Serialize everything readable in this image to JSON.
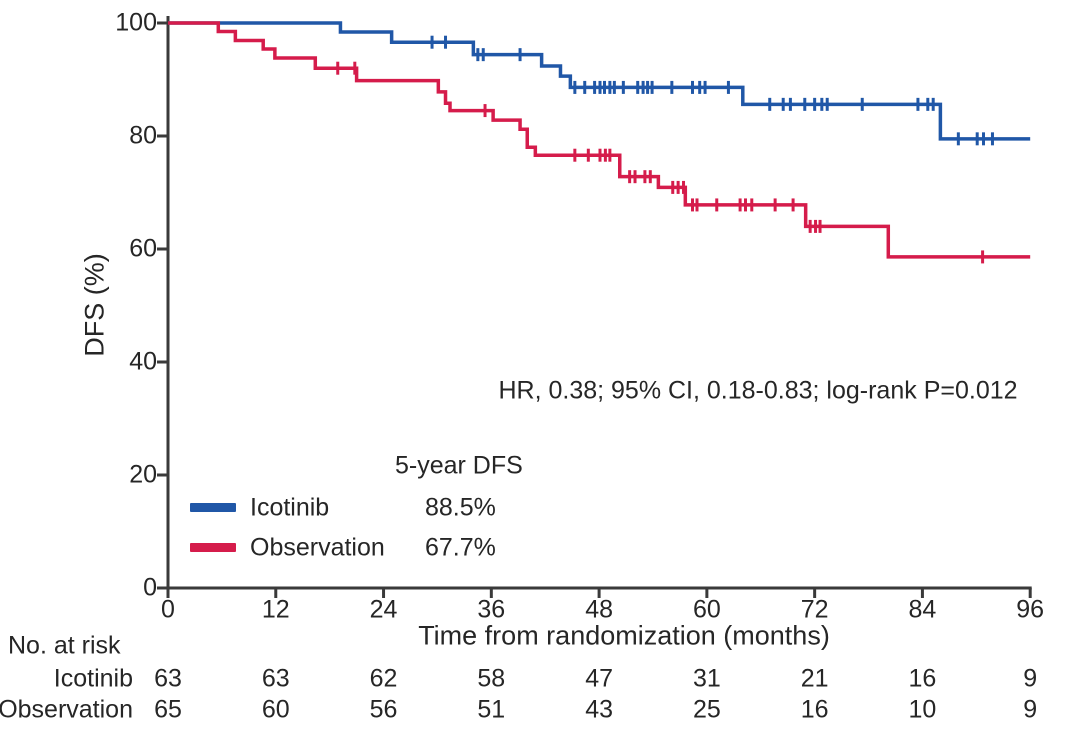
{
  "chart_data": {
    "type": "line",
    "subtype": "kaplan-meier-step-curves",
    "title": "",
    "xlabel": "Time from randomization (months)",
    "ylabel": "DFS (%)",
    "xlim": [
      0,
      96
    ],
    "ylim": [
      0,
      100
    ],
    "xticks": [
      0,
      12,
      24,
      36,
      48,
      60,
      72,
      84,
      96
    ],
    "yticks": [
      0,
      20,
      40,
      60,
      80,
      100
    ],
    "grid": false,
    "legend_position": "lower-left-inside",
    "annotation": "HR, 0.38; 95% CI, 0.18-0.83; log-rank P=0.012",
    "legend": {
      "header": "5-year DFS",
      "entries": [
        {
          "name": "Icotinib",
          "color": "#2057a7",
          "five_year_dfs": "88.5%"
        },
        {
          "name": "Observation",
          "color": "#d51c4b",
          "five_year_dfs": "67.7%"
        }
      ]
    },
    "series": [
      {
        "name": "Icotinib",
        "color": "#2057a7",
        "steps": [
          [
            0,
            100
          ],
          [
            19.2,
            98.4
          ],
          [
            24.9,
            96.6
          ],
          [
            34.0,
            94.4
          ],
          [
            41.6,
            92.4
          ],
          [
            43.7,
            90.6
          ],
          [
            44.8,
            88.6
          ],
          [
            64.0,
            85.6
          ],
          [
            86.0,
            79.5
          ]
        ],
        "end_month": 96,
        "censors": [
          [
            29.4,
            96.6
          ],
          [
            30.9,
            96.6
          ],
          [
            34.5,
            94.4
          ],
          [
            35.1,
            94.4
          ],
          [
            39.2,
            94.4
          ],
          [
            45.3,
            88.6
          ],
          [
            46.4,
            88.6
          ],
          [
            47.5,
            88.6
          ],
          [
            48.1,
            88.6
          ],
          [
            48.6,
            88.6
          ],
          [
            49.2,
            88.6
          ],
          [
            49.7,
            88.6
          ],
          [
            50.7,
            88.6
          ],
          [
            52.3,
            88.6
          ],
          [
            52.9,
            88.6
          ],
          [
            53.4,
            88.6
          ],
          [
            53.9,
            88.6
          ],
          [
            56.1,
            88.6
          ],
          [
            58.4,
            88.6
          ],
          [
            59.2,
            88.6
          ],
          [
            59.8,
            88.6
          ],
          [
            62.4,
            88.6
          ],
          [
            67.0,
            85.6
          ],
          [
            68.5,
            85.6
          ],
          [
            69.3,
            85.6
          ],
          [
            70.9,
            85.6
          ],
          [
            72.0,
            85.6
          ],
          [
            72.8,
            85.6
          ],
          [
            73.4,
            85.6
          ],
          [
            77.3,
            85.6
          ],
          [
            83.5,
            85.6
          ],
          [
            84.6,
            85.6
          ],
          [
            85.2,
            85.6
          ],
          [
            88.0,
            79.5
          ],
          [
            90.1,
            79.5
          ],
          [
            90.8,
            79.5
          ],
          [
            91.8,
            79.5
          ]
        ]
      },
      {
        "name": "Observation",
        "color": "#d51c4b",
        "steps": [
          [
            0,
            100
          ],
          [
            5.6,
            98.5
          ],
          [
            7.5,
            96.9
          ],
          [
            10.6,
            95.4
          ],
          [
            11.9,
            93.8
          ],
          [
            16.4,
            92.0
          ],
          [
            21.0,
            89.8
          ],
          [
            30.1,
            87.8
          ],
          [
            30.9,
            85.8
          ],
          [
            31.4,
            84.5
          ],
          [
            36.2,
            82.8
          ],
          [
            39.2,
            81.2
          ],
          [
            40.0,
            78.0
          ],
          [
            40.9,
            76.6
          ],
          [
            50.3,
            72.8
          ],
          [
            54.6,
            70.9
          ],
          [
            57.6,
            67.8
          ],
          [
            71.0,
            64.0
          ],
          [
            80.2,
            58.6
          ]
        ],
        "end_month": 96,
        "censors": [
          [
            18.9,
            92.0
          ],
          [
            20.8,
            92.0
          ],
          [
            35.3,
            84.5
          ],
          [
            45.3,
            76.6
          ],
          [
            46.8,
            76.6
          ],
          [
            48.1,
            76.6
          ],
          [
            48.7,
            76.6
          ],
          [
            49.2,
            76.6
          ],
          [
            51.4,
            72.8
          ],
          [
            52.0,
            72.8
          ],
          [
            53.1,
            72.8
          ],
          [
            53.7,
            72.8
          ],
          [
            56.2,
            70.9
          ],
          [
            56.8,
            70.9
          ],
          [
            57.4,
            70.9
          ],
          [
            58.4,
            67.8
          ],
          [
            58.9,
            67.8
          ],
          [
            61.1,
            67.8
          ],
          [
            63.7,
            67.8
          ],
          [
            64.3,
            67.8
          ],
          [
            65.0,
            67.8
          ],
          [
            67.6,
            67.8
          ],
          [
            69.6,
            67.8
          ],
          [
            71.5,
            64.0
          ],
          [
            72.1,
            64.0
          ],
          [
            72.6,
            64.0
          ],
          [
            90.7,
            58.6
          ]
        ]
      }
    ],
    "risk_table": {
      "label": "No. at risk",
      "timepoints": [
        0,
        12,
        24,
        36,
        48,
        60,
        72,
        84,
        96
      ],
      "rows": [
        {
          "label": "Icotinib",
          "values": [
            63,
            63,
            62,
            58,
            47,
            31,
            21,
            16,
            9
          ]
        },
        {
          "label": "Observation",
          "values": [
            65,
            60,
            56,
            51,
            43,
            25,
            16,
            10,
            9
          ]
        }
      ]
    }
  },
  "colors": {
    "axis": "#3a3a3a",
    "text": "#262626",
    "background": "#ffffff",
    "icotinib_blue": "#2057a7",
    "observation_red": "#d51c4b"
  }
}
